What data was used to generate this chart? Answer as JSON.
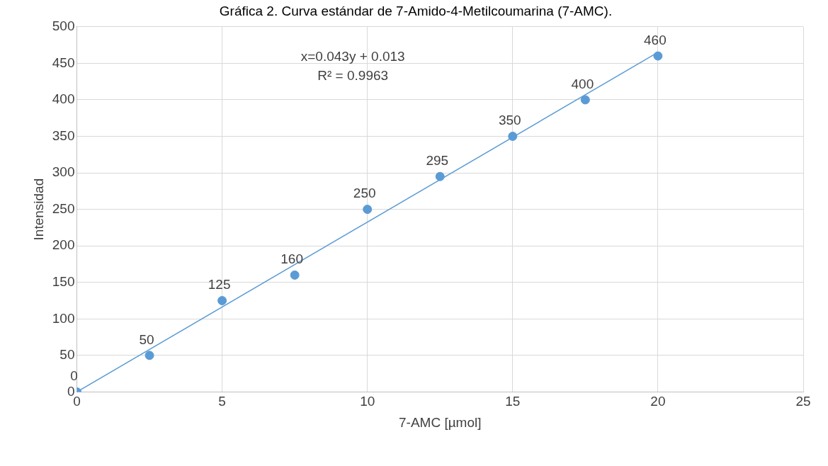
{
  "chart_data": {
    "type": "scatter",
    "title": "Gráfica 2. Curva estándar de 7-Amido-4-Metilcoumarina (7-AMC).",
    "xlabel": "7-AMC [µmol]",
    "ylabel": "Intensidad",
    "x": [
      0,
      2.5,
      5,
      7.5,
      10,
      12.5,
      15,
      17.5,
      20
    ],
    "series": [
      {
        "color": "#5b9bd5",
        "values": [
          0,
          50,
          125,
          160,
          250,
          295,
          350,
          400,
          460
        ],
        "data_labels": true,
        "marker": "circle"
      },
      {
        "type": "line",
        "color": "#5b9bd5",
        "x": [
          0,
          20
        ],
        "values": [
          0,
          465
        ],
        "marker": "none",
        "line_style": "solid"
      }
    ],
    "xlim": [
      0,
      25
    ],
    "xticks": [
      0,
      5,
      10,
      15,
      20,
      25
    ],
    "ylim": [
      0,
      500
    ],
    "yticks": [
      0,
      50,
      100,
      150,
      200,
      250,
      300,
      350,
      400,
      450,
      500
    ],
    "grid": true,
    "legend": false,
    "annotations": [
      "x=0.043y + 0.013",
      "R² = 0.9963"
    ]
  }
}
